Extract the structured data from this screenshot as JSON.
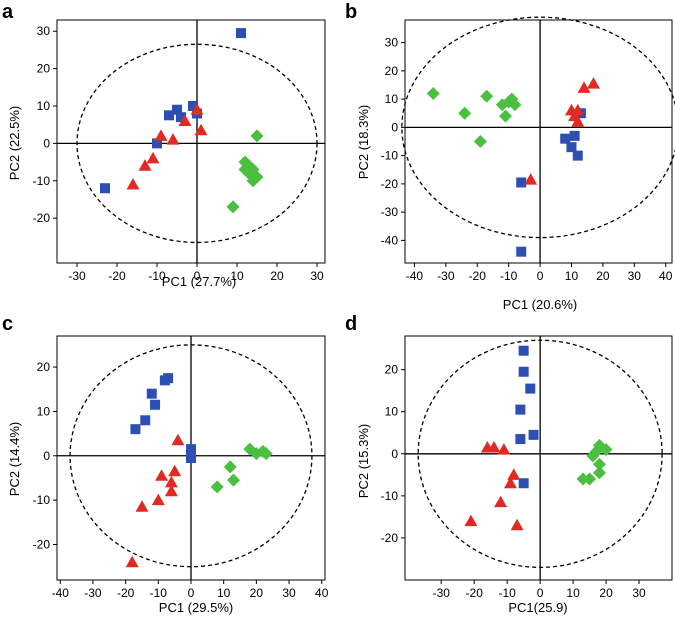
{
  "figure": {
    "colors": {
      "sq": "#2d4fb3",
      "tri": "#e02a23",
      "dia": "#4bbf3f"
    },
    "marker_shapes": {
      "sq": "square",
      "tri": "triangle",
      "dia": "diamond"
    }
  },
  "chart_data": [
    {
      "type": "scatter",
      "panel": "a",
      "xlabel": "PC1 (27.7%)",
      "ylabel": "PC2 (22.5%)",
      "xlim": [
        -35,
        32
      ],
      "ylim": [
        -32,
        33
      ],
      "xticks": [
        -30,
        -20,
        -10,
        0,
        10,
        20,
        30
      ],
      "yticks": [
        -20,
        -10,
        0,
        10,
        20,
        30
      ],
      "ellipse": {
        "cx": 0,
        "cy": 0,
        "rx": 30,
        "ry": 26.5
      },
      "series": [
        {
          "name": "sq",
          "points": [
            [
              11,
              29.5
            ],
            [
              -23,
              -12
            ],
            [
              -10,
              0
            ],
            [
              -7,
              7.5
            ],
            [
              -5,
              9
            ],
            [
              -1,
              10
            ],
            [
              0,
              8
            ],
            [
              -4,
              7
            ]
          ]
        },
        {
          "name": "tri",
          "points": [
            [
              -16,
              -11
            ],
            [
              -13,
              -6
            ],
            [
              -11,
              -4
            ],
            [
              -9,
              2
            ],
            [
              -6,
              1
            ],
            [
              -3,
              6
            ],
            [
              0,
              9
            ],
            [
              1,
              3.5
            ]
          ]
        },
        {
          "name": "dia",
          "points": [
            [
              15,
              2
            ],
            [
              12,
              -5
            ],
            [
              13,
              -6
            ],
            [
              12,
              -7
            ],
            [
              14,
              -7
            ],
            [
              13,
              -8
            ],
            [
              15,
              -9
            ],
            [
              14,
              -10
            ],
            [
              9,
              -17
            ]
          ]
        }
      ]
    },
    {
      "type": "scatter",
      "panel": "b",
      "xlabel": "PC1 (20.6%)",
      "ylabel": "PC2 (18.3%)",
      "xlim": [
        -43,
        42
      ],
      "ylim": [
        -48,
        38
      ],
      "xticks": [
        -40,
        -30,
        -20,
        -10,
        0,
        10,
        20,
        30,
        40
      ],
      "yticks": [
        -40,
        -30,
        -20,
        -10,
        0,
        10,
        20,
        30
      ],
      "ellipse": {
        "cx": 0,
        "cy": 0,
        "rx": 44,
        "ry": 39
      },
      "series": [
        {
          "name": "sq",
          "points": [
            [
              -6,
              -19.5
            ],
            [
              -6,
              -44
            ],
            [
              8,
              -4
            ],
            [
              10,
              -7
            ],
            [
              12,
              -10
            ],
            [
              11,
              -3
            ],
            [
              13,
              5
            ]
          ]
        },
        {
          "name": "tri",
          "points": [
            [
              -3,
              -18.5
            ],
            [
              10,
              6
            ],
            [
              12,
              6
            ],
            [
              11,
              4
            ],
            [
              12,
              2
            ],
            [
              14,
              14
            ],
            [
              17,
              15.5
            ]
          ]
        },
        {
          "name": "dia",
          "points": [
            [
              -34,
              12
            ],
            [
              -24,
              5
            ],
            [
              -19,
              -5
            ],
            [
              -17,
              11
            ],
            [
              -12,
              8
            ],
            [
              -10,
              9
            ],
            [
              -9,
              10
            ],
            [
              -8,
              8
            ],
            [
              -11,
              4
            ]
          ]
        }
      ]
    },
    {
      "type": "scatter",
      "panel": "c",
      "xlabel": "PC1 (29.5%)",
      "ylabel": "PC2 (14.4%)",
      "xlim": [
        -41,
        41
      ],
      "ylim": [
        -28,
        27
      ],
      "xticks": [
        -40,
        -30,
        -20,
        -10,
        0,
        10,
        20,
        30,
        40
      ],
      "yticks": [
        -20,
        -10,
        0,
        10,
        20
      ],
      "ellipse": {
        "cx": 0,
        "cy": 0,
        "rx": 37,
        "ry": 25
      },
      "series": [
        {
          "name": "sq",
          "points": [
            [
              -7,
              17.5
            ],
            [
              -8,
              17
            ],
            [
              -12,
              14
            ],
            [
              -11,
              11.5
            ],
            [
              -14,
              8
            ],
            [
              -17,
              6
            ],
            [
              0,
              1.5
            ],
            [
              0,
              -0.5
            ]
          ]
        },
        {
          "name": "tri",
          "points": [
            [
              -18,
              -24
            ],
            [
              -15,
              -11.5
            ],
            [
              -10,
              -10
            ],
            [
              -6,
              -8
            ],
            [
              -6,
              -6
            ],
            [
              -9,
              -4.5
            ],
            [
              -5,
              -3.5
            ],
            [
              -4,
              3.5
            ]
          ]
        },
        {
          "name": "dia",
          "points": [
            [
              8,
              -7
            ],
            [
              12,
              -2.5
            ],
            [
              13,
              -5.5
            ],
            [
              18,
              1.5
            ],
            [
              20,
              0.5
            ],
            [
              22,
              1
            ],
            [
              23,
              0.5
            ]
          ]
        }
      ]
    },
    {
      "type": "scatter",
      "panel": "d",
      "xlabel": "PC1(25.9)",
      "ylabel": "PC2 (15.3%)",
      "xlim": [
        -41,
        40
      ],
      "ylim": [
        -30,
        28
      ],
      "xticks": [
        -30,
        -20,
        -10,
        0,
        10,
        20,
        30
      ],
      "yticks": [
        -20,
        -10,
        0,
        10,
        20
      ],
      "ellipse": {
        "cx": 0,
        "cy": 0,
        "rx": 37,
        "ry": 27
      },
      "series": [
        {
          "name": "sq",
          "points": [
            [
              -5,
              24.5
            ],
            [
              -5,
              19.5
            ],
            [
              -3,
              15.5
            ],
            [
              -6,
              10.5
            ],
            [
              -2,
              4.5
            ],
            [
              -6,
              3.5
            ],
            [
              -5,
              -7
            ]
          ]
        },
        {
          "name": "tri",
          "points": [
            [
              -21,
              -16
            ],
            [
              -12,
              -11.5
            ],
            [
              -9,
              -7
            ],
            [
              -8,
              -5
            ],
            [
              -7,
              -17
            ],
            [
              -14,
              1.5
            ],
            [
              -16,
              1.5
            ],
            [
              -11,
              1
            ]
          ]
        },
        {
          "name": "dia",
          "points": [
            [
              13,
              -6
            ],
            [
              15,
              -6
            ],
            [
              18,
              -4.5
            ],
            [
              18,
              -2.5
            ],
            [
              16,
              -0.5
            ],
            [
              17,
              0.5
            ],
            [
              18,
              2
            ],
            [
              20,
              1
            ]
          ]
        }
      ]
    }
  ]
}
